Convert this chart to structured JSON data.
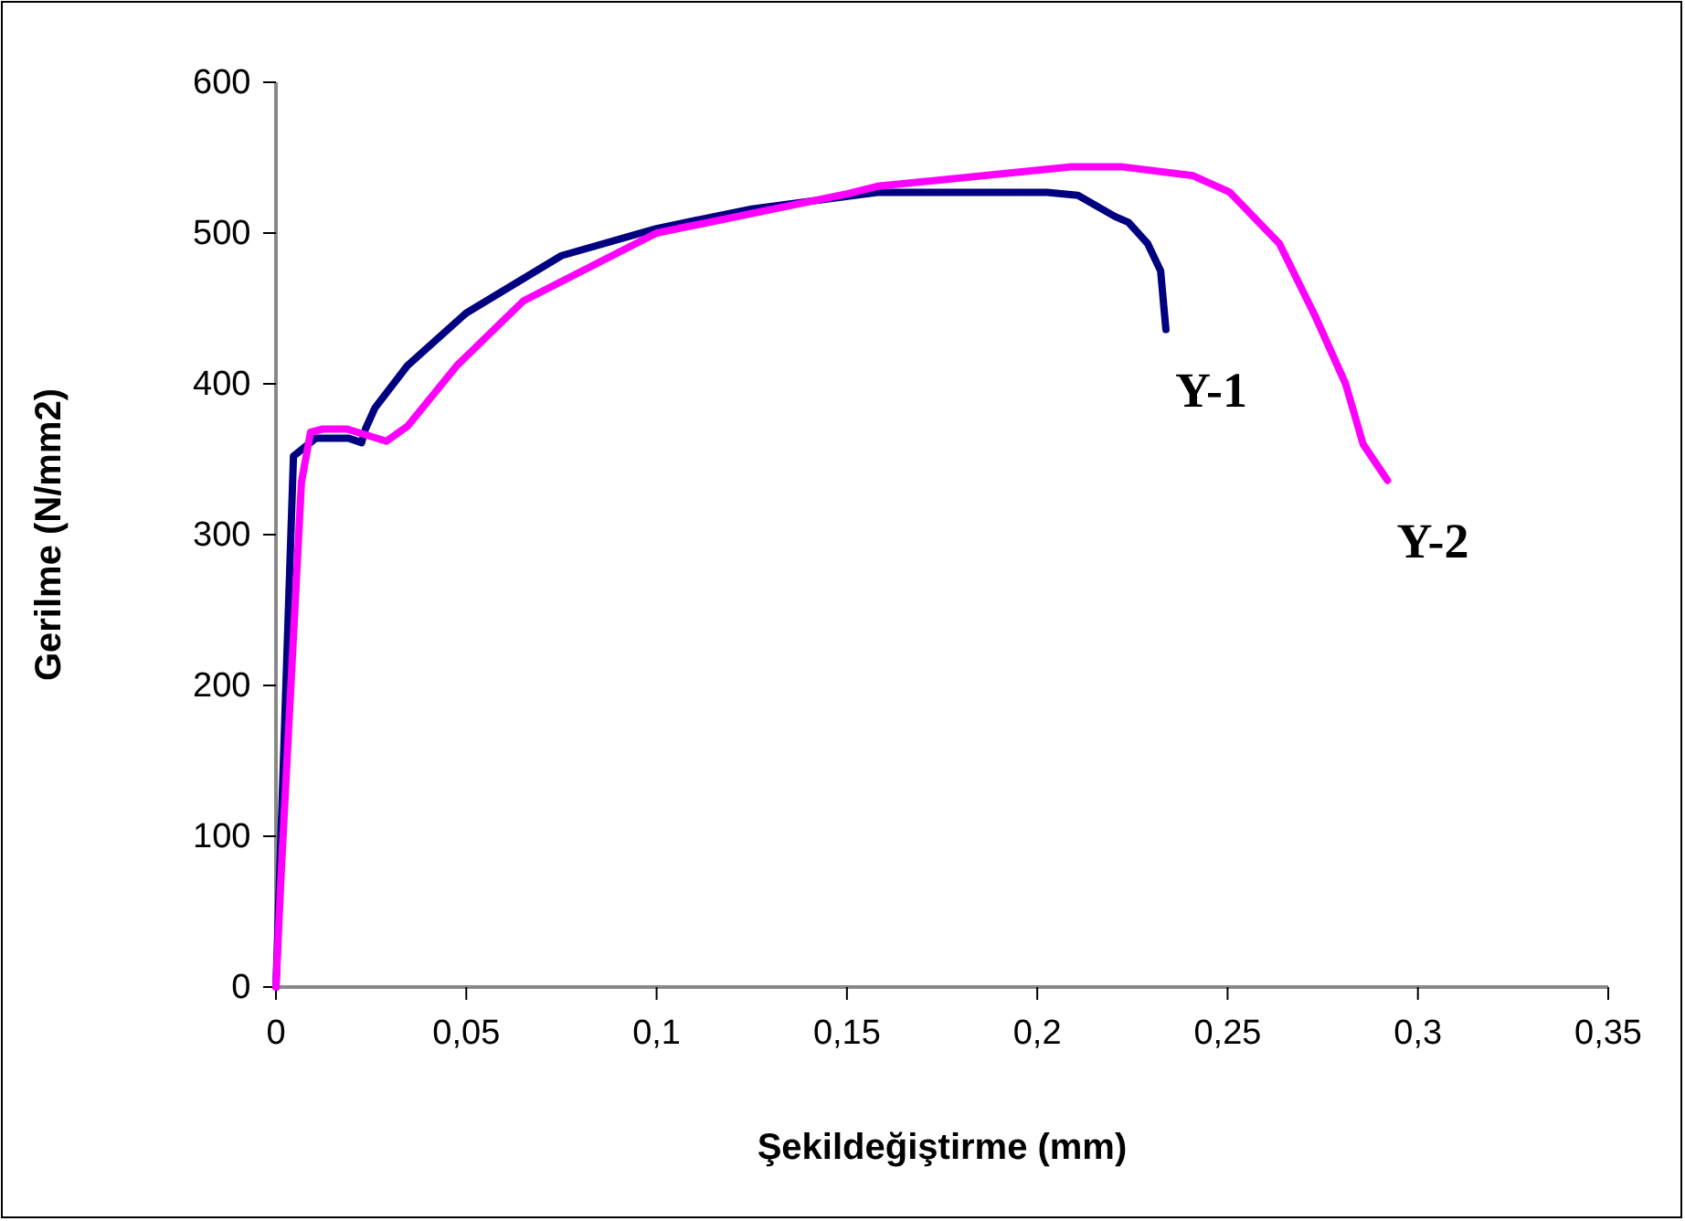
{
  "chart_data": {
    "type": "line",
    "xlabel": "Şekildeğiştirme (mm)",
    "ylabel": "Gerilme (N/mm2)",
    "xlim": [
      0,
      0.35
    ],
    "ylim": [
      0,
      600
    ],
    "xticks": [
      0,
      {
        "value": 0.05,
        "label": "0,05"
      },
      {
        "value": 0.1,
        "label": "0,1"
      },
      {
        "value": 0.15,
        "label": "0,15"
      },
      {
        "value": 0.2,
        "label": "0,2"
      },
      {
        "value": 0.25,
        "label": "0,25"
      },
      {
        "value": 0.3,
        "label": "0,3"
      },
      {
        "value": 0.35,
        "label": "0,35"
      }
    ],
    "yticks": [
      0,
      100,
      200,
      300,
      400,
      500,
      600
    ],
    "grid": false,
    "legend": false,
    "marker": "none",
    "line_style": "solid",
    "series": [
      {
        "name": "Y-1",
        "color": "#000080",
        "x": [
          0,
          0.0046,
          0.0105,
          0.019,
          0.0225,
          0.0235,
          0.026,
          0.0345,
          0.05,
          0.075,
          0.1,
          0.125,
          0.158,
          0.2026,
          0.2107,
          0.2204,
          0.224,
          0.229,
          0.2324,
          0.2338
        ],
        "values": [
          0,
          352,
          364,
          364,
          361,
          370,
          384,
          412,
          447,
          485,
          503,
          516,
          527,
          527,
          525,
          511,
          507,
          493,
          475,
          436
        ]
      },
      {
        "name": "Y-2",
        "color": "#ff00ff",
        "x": [
          0,
          0.0014,
          0.0067,
          0.0091,
          0.0123,
          0.0187,
          0.029,
          0.0346,
          0.0475,
          0.065,
          0.1,
          0.15,
          0.158,
          0.209,
          0.222,
          0.241,
          0.2506,
          0.2636,
          0.273,
          0.281,
          0.2856,
          0.292
        ],
        "values": [
          0,
          77,
          335,
          368,
          370,
          370,
          362,
          372,
          412,
          455,
          500,
          526,
          531,
          544,
          544,
          538,
          527,
          493,
          445,
          400,
          360,
          336
        ]
      }
    ]
  }
}
